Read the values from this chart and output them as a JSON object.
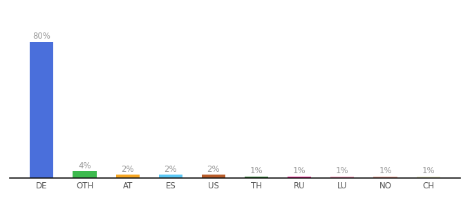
{
  "categories": [
    "DE",
    "OTH",
    "AT",
    "ES",
    "US",
    "TH",
    "RU",
    "LU",
    "NO",
    "CH"
  ],
  "values": [
    80,
    4,
    2,
    2,
    2,
    1,
    1,
    1,
    1,
    1
  ],
  "labels": [
    "80%",
    "4%",
    "2%",
    "2%",
    "2%",
    "1%",
    "1%",
    "1%",
    "1%",
    "1%"
  ],
  "bar_colors": [
    "#4a6fdb",
    "#3dba4e",
    "#f5a623",
    "#5bc8f5",
    "#b85c2a",
    "#2e7d32",
    "#e91e8c",
    "#f48fb1",
    "#e8a090",
    "#e8e8c0"
  ],
  "label_fontsize": 8.5,
  "tick_fontsize": 8.5,
  "label_color": "#999999",
  "tick_color": "#555555",
  "ylim": [
    0,
    90
  ],
  "bg_color": "#ffffff",
  "bar_width": 0.55,
  "bottom_line_color": "#111111"
}
